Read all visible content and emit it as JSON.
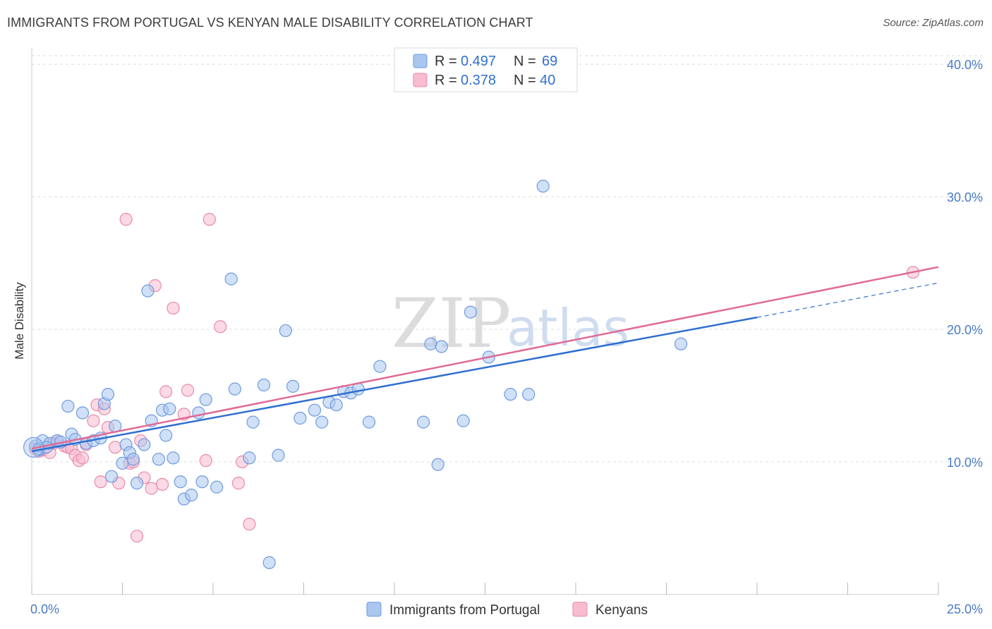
{
  "title": "IMMIGRANTS FROM PORTUGAL VS KENYAN MALE DISABILITY CORRELATION CHART",
  "source": "Source: ZipAtlas.com",
  "watermark": {
    "zip": "ZIP",
    "atlas": "atlas"
  },
  "legend": {
    "r_label": "R =",
    "n_label": "N =",
    "series1": {
      "r": "0.497",
      "n": "69"
    },
    "series2": {
      "r": "0.378",
      "n": "40"
    }
  },
  "colors": {
    "series1_fill": "#a9c6ee",
    "series1_stroke": "#6e9be0",
    "series1_line": "#2f6fd0",
    "series2_fill": "#f7bcd0",
    "series2_stroke": "#e98aaa",
    "series2_line": "#e06a96",
    "grid": "#dddddd",
    "axis_label": "#4a7bc8"
  },
  "chart_data": {
    "type": "scatter",
    "title": "IMMIGRANTS FROM PORTUGAL VS KENYAN MALE DISABILITY CORRELATION CHART",
    "xlabel": "",
    "ylabel": "Male Disability",
    "xlim": [
      0,
      25
    ],
    "ylim": [
      0,
      41.6
    ],
    "x_tick_labels": [
      "0.0%",
      "25.0%"
    ],
    "y_ticks": [
      10,
      20,
      30,
      40
    ],
    "y_tick_labels": [
      "10.0%",
      "20.0%",
      "30.0%",
      "40.0%"
    ],
    "grid": true,
    "legend_position": "top-center",
    "series": [
      {
        "name": "Immigrants from Portugal",
        "R": 0.497,
        "N": 69,
        "trend": {
          "x0": 0,
          "y0": 10.8,
          "x1": 20,
          "y1": 20.9,
          "dashed_to_x": 25,
          "dashed_to_y": 23.5
        },
        "points": [
          [
            0.1,
            11.2
          ],
          [
            0.2,
            11.0
          ],
          [
            0.3,
            11.6
          ],
          [
            0.5,
            11.4
          ],
          [
            0.7,
            11.6
          ],
          [
            0.8,
            11.5
          ],
          [
            1.0,
            14.2
          ],
          [
            1.1,
            12.1
          ],
          [
            1.2,
            11.7
          ],
          [
            1.4,
            13.7
          ],
          [
            1.5,
            11.4
          ],
          [
            1.7,
            11.6
          ],
          [
            1.9,
            11.8
          ],
          [
            2.0,
            14.4
          ],
          [
            2.1,
            15.1
          ],
          [
            2.2,
            8.9
          ],
          [
            2.3,
            12.7
          ],
          [
            2.5,
            9.9
          ],
          [
            2.6,
            11.3
          ],
          [
            2.7,
            10.7
          ],
          [
            2.8,
            10.2
          ],
          [
            2.9,
            8.4
          ],
          [
            3.1,
            11.3
          ],
          [
            3.2,
            22.9
          ],
          [
            3.3,
            13.1
          ],
          [
            3.5,
            10.2
          ],
          [
            3.6,
            13.9
          ],
          [
            3.7,
            12.0
          ],
          [
            3.8,
            14.0
          ],
          [
            3.9,
            10.3
          ],
          [
            4.1,
            8.5
          ],
          [
            4.2,
            7.2
          ],
          [
            4.4,
            7.5
          ],
          [
            4.6,
            13.7
          ],
          [
            4.7,
            8.5
          ],
          [
            4.8,
            14.7
          ],
          [
            5.1,
            8.1
          ],
          [
            5.5,
            23.8
          ],
          [
            5.6,
            15.5
          ],
          [
            6.0,
            10.3
          ],
          [
            6.1,
            13.0
          ],
          [
            6.4,
            15.8
          ],
          [
            6.55,
            2.4
          ],
          [
            6.8,
            10.5
          ],
          [
            7.0,
            19.9
          ],
          [
            7.2,
            15.7
          ],
          [
            7.4,
            13.3
          ],
          [
            7.8,
            13.9
          ],
          [
            8.0,
            13.0
          ],
          [
            8.2,
            14.5
          ],
          [
            8.4,
            14.3
          ],
          [
            8.6,
            15.3
          ],
          [
            8.8,
            15.2
          ],
          [
            9.0,
            15.5
          ],
          [
            9.3,
            13.0
          ],
          [
            9.6,
            17.2
          ],
          [
            10.8,
            13.0
          ],
          [
            11.0,
            18.9
          ],
          [
            11.2,
            9.8
          ],
          [
            11.3,
            18.7
          ],
          [
            11.9,
            13.1
          ],
          [
            12.1,
            21.3
          ],
          [
            12.6,
            17.9
          ],
          [
            13.2,
            15.1
          ],
          [
            13.7,
            15.1
          ],
          [
            14.1,
            30.8
          ],
          [
            17.9,
            18.9
          ],
          [
            0.2,
            10.9
          ],
          [
            0.4,
            11.1
          ]
        ]
      },
      {
        "name": "Kenyans",
        "R": 0.378,
        "N": 40,
        "trend": {
          "x0": 0,
          "y0": 11.0,
          "x1": 25,
          "y1": 24.7
        },
        "points": [
          [
            0.1,
            11.0
          ],
          [
            0.3,
            10.9
          ],
          [
            0.5,
            10.7
          ],
          [
            0.7,
            11.6
          ],
          [
            0.9,
            11.2
          ],
          [
            1.0,
            11.1
          ],
          [
            1.1,
            11.0
          ],
          [
            1.2,
            10.5
          ],
          [
            1.3,
            10.1
          ],
          [
            1.4,
            10.3
          ],
          [
            1.5,
            11.3
          ],
          [
            1.7,
            13.1
          ],
          [
            1.8,
            14.3
          ],
          [
            1.9,
            8.5
          ],
          [
            2.0,
            14.0
          ],
          [
            2.1,
            12.6
          ],
          [
            2.3,
            11.1
          ],
          [
            2.4,
            8.4
          ],
          [
            2.6,
            28.3
          ],
          [
            2.7,
            9.9
          ],
          [
            2.8,
            10.0
          ],
          [
            2.9,
            4.4
          ],
          [
            3.0,
            11.6
          ],
          [
            3.1,
            8.8
          ],
          [
            3.3,
            8.0
          ],
          [
            3.4,
            23.3
          ],
          [
            3.6,
            8.3
          ],
          [
            3.7,
            15.3
          ],
          [
            3.9,
            21.6
          ],
          [
            4.2,
            13.6
          ],
          [
            4.3,
            15.4
          ],
          [
            4.8,
            10.1
          ],
          [
            4.9,
            28.3
          ],
          [
            5.2,
            20.2
          ],
          [
            5.7,
            8.4
          ],
          [
            5.8,
            10.0
          ],
          [
            6.0,
            5.3
          ],
          [
            24.3,
            24.3
          ],
          [
            0.2,
            10.8
          ],
          [
            0.6,
            11.4
          ]
        ]
      }
    ]
  },
  "bottom_legend": {
    "series1_label": "Immigrants from Portugal",
    "series2_label": "Kenyans"
  }
}
